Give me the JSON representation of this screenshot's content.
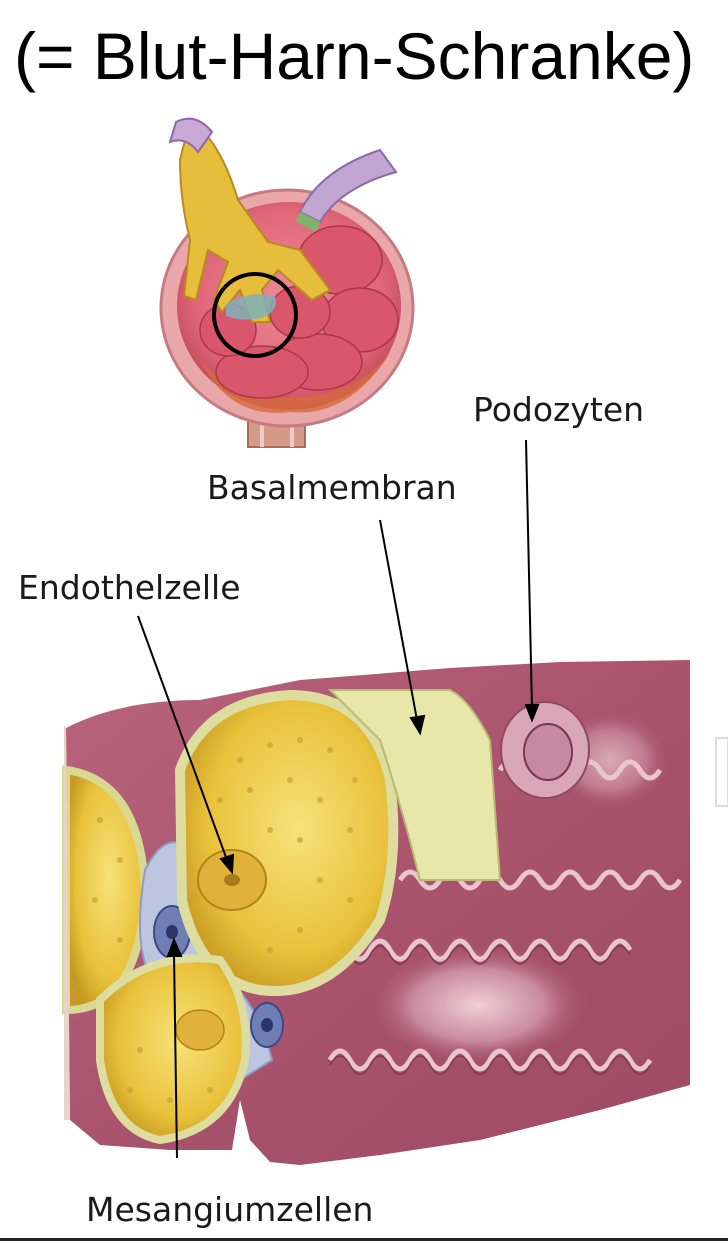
{
  "title": "(= Blut-Harn-Schranke)",
  "labels": {
    "podozyten": "Podozyten",
    "basalmembran": "Basalmembran",
    "endothelzelle": "Endothelzelle",
    "mesangiumzellen": "Mesangiumzellen"
  },
  "colors": {
    "capsule": "#e36b7a",
    "capsule_dark": "#b8434f",
    "arteriole": "#e6b93a",
    "capillary_lumen": "#efd24a",
    "basement_membrane": "#e6e7a8",
    "tissue": "#a6506b",
    "tissue_light": "#c98aa0",
    "mesangium": "#bcc6e0",
    "nucleus": "#4c5a93",
    "vein": "#c1a6d4"
  }
}
